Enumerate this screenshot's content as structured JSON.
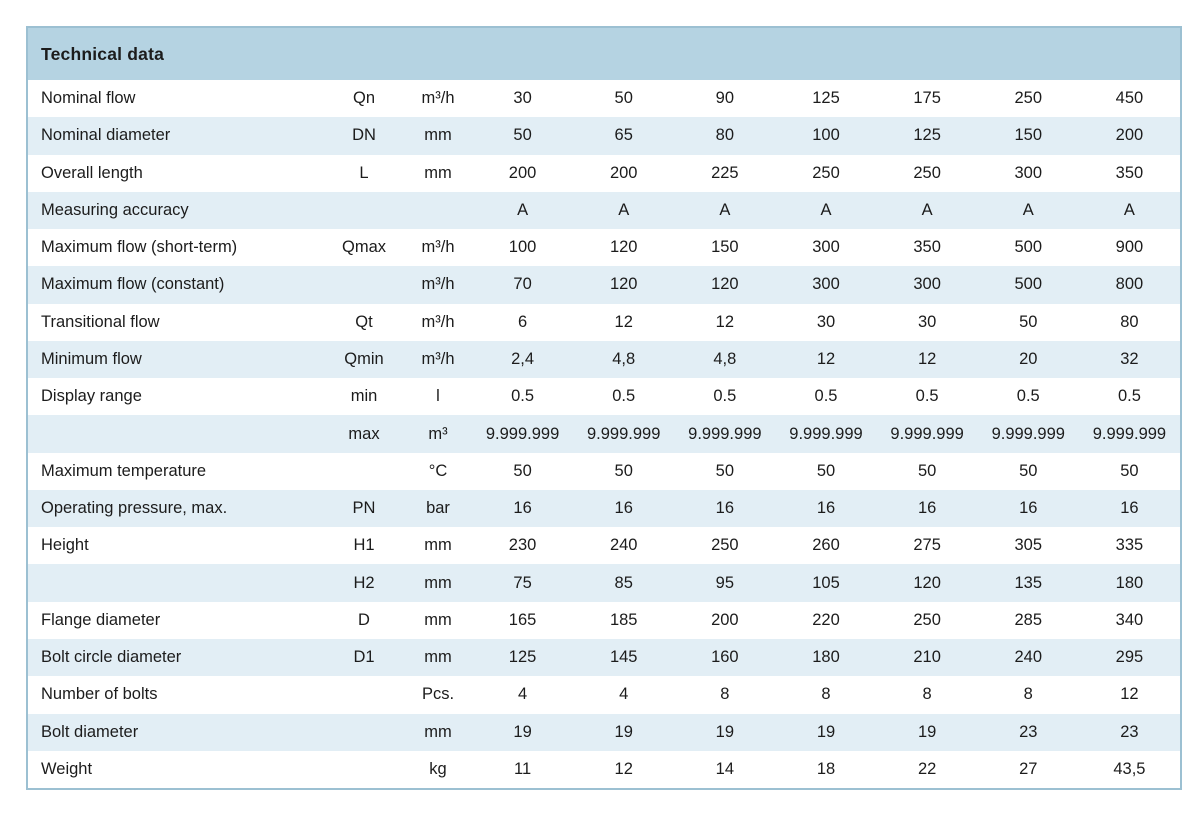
{
  "page": {
    "background": "#ffffff"
  },
  "table": {
    "title": "Technical data",
    "colors": {
      "header_bg": "#b5d3e2",
      "row_bg": "#ffffff",
      "row_alt_bg": "#e2eef5",
      "border": "#9cc0d2",
      "text": "#1c1c1c"
    },
    "value_column_count": 7,
    "rows": [
      {
        "label": "Nominal flow",
        "symbol": "Qn",
        "unit": "m³/h",
        "values": [
          "30",
          "50",
          "90",
          "125",
          "175",
          "250",
          "450"
        ]
      },
      {
        "label": "Nominal diameter",
        "symbol": "DN",
        "unit": "mm",
        "values": [
          "50",
          "65",
          "80",
          "100",
          "125",
          "150",
          "200"
        ]
      },
      {
        "label": "Overall length",
        "symbol": "L",
        "unit": "mm",
        "values": [
          "200",
          "200",
          "225",
          "250",
          "250",
          "300",
          "350"
        ]
      },
      {
        "label": "Measuring accuracy",
        "symbol": "",
        "unit": "",
        "values": [
          "A",
          "A",
          "A",
          "A",
          "A",
          "A",
          "A"
        ]
      },
      {
        "label": "Maximum flow (short-term)",
        "symbol": "Qmax",
        "unit": "m³/h",
        "values": [
          "100",
          "120",
          "150",
          "300",
          "350",
          "500",
          "900"
        ]
      },
      {
        "label": "Maximum flow (constant)",
        "symbol": "",
        "unit": "m³/h",
        "values": [
          "70",
          "120",
          "120",
          "300",
          "300",
          "500",
          "800"
        ]
      },
      {
        "label": "Transitional flow",
        "symbol": "Qt",
        "unit": "m³/h",
        "values": [
          "6",
          "12",
          "12",
          "30",
          "30",
          "50",
          "80"
        ]
      },
      {
        "label": "Minimum flow",
        "symbol": "Qmin",
        "unit": "m³/h",
        "values": [
          "2,4",
          "4,8",
          "4,8",
          "12",
          "12",
          "20",
          "32"
        ]
      },
      {
        "label": "Display range",
        "symbol": "min",
        "unit": "l",
        "values": [
          "0.5",
          "0.5",
          "0.5",
          "0.5",
          "0.5",
          "0.5",
          "0.5"
        ]
      },
      {
        "label": "",
        "symbol": "max",
        "unit": "m³",
        "values": [
          "9.999.999",
          "9.999.999",
          "9.999.999",
          "9.999.999",
          "9.999.999",
          "9.999.999",
          "9.999.999"
        ]
      },
      {
        "label": "Maximum temperature",
        "symbol": "",
        "unit": "°C",
        "values": [
          "50",
          "50",
          "50",
          "50",
          "50",
          "50",
          "50"
        ]
      },
      {
        "label": "Operating pressure, max.",
        "symbol": "PN",
        "unit": "bar",
        "values": [
          "16",
          "16",
          "16",
          "16",
          "16",
          "16",
          "16"
        ]
      },
      {
        "label": "Height",
        "symbol": "H1",
        "unit": "mm",
        "values": [
          "230",
          "240",
          "250",
          "260",
          "275",
          "305",
          "335"
        ]
      },
      {
        "label": "",
        "symbol": "H2",
        "unit": "mm",
        "values": [
          "75",
          "85",
          "95",
          "105",
          "120",
          "135",
          "180"
        ]
      },
      {
        "label": "Flange diameter",
        "symbol": "D",
        "unit": "mm",
        "values": [
          "165",
          "185",
          "200",
          "220",
          "250",
          "285",
          "340"
        ]
      },
      {
        "label": "Bolt circle diameter",
        "symbol": "D1",
        "unit": "mm",
        "values": [
          "125",
          "145",
          "160",
          "180",
          "210",
          "240",
          "295"
        ]
      },
      {
        "label": "Number of bolts",
        "symbol": "",
        "unit": "Pcs.",
        "values": [
          "4",
          "4",
          "8",
          "8",
          "8",
          "8",
          "12"
        ]
      },
      {
        "label": "Bolt diameter",
        "symbol": "",
        "unit": "mm",
        "values": [
          "19",
          "19",
          "19",
          "19",
          "19",
          "23",
          "23"
        ]
      },
      {
        "label": "Weight",
        "symbol": "",
        "unit": "kg",
        "values": [
          "11",
          "12",
          "14",
          "18",
          "22",
          "27",
          "43,5"
        ]
      }
    ]
  }
}
